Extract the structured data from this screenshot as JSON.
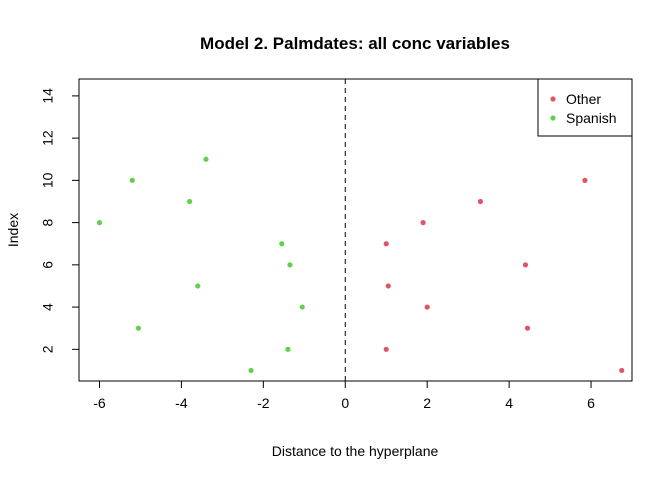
{
  "chart_data": {
    "type": "scatter",
    "title": "Model 2. Palmdates: all conc variables",
    "xlabel": "Distance to the hyperplane",
    "ylabel": "Index",
    "xlim": [
      -6.5,
      7.0
    ],
    "ylim": [
      0.5,
      14.8
    ],
    "xticks": [
      -6,
      -4,
      -2,
      0,
      2,
      4,
      6
    ],
    "yticks": [
      2,
      4,
      6,
      8,
      10,
      12,
      14
    ],
    "reference_line": {
      "x": 0,
      "style": "dashed"
    },
    "legend_position": "top-right",
    "series": [
      {
        "name": "Other",
        "color": "#DF536B",
        "points": [
          {
            "x": 6.75,
            "y": 1
          },
          {
            "x": 1.0,
            "y": 2
          },
          {
            "x": 4.45,
            "y": 3
          },
          {
            "x": 2.0,
            "y": 4
          },
          {
            "x": 1.05,
            "y": 5
          },
          {
            "x": 4.4,
            "y": 6
          },
          {
            "x": 1.0,
            "y": 7
          },
          {
            "x": 1.9,
            "y": 8
          },
          {
            "x": 3.3,
            "y": 9
          },
          {
            "x": 5.85,
            "y": 10
          }
        ]
      },
      {
        "name": "Spanish",
        "color": "#61D04F",
        "points": [
          {
            "x": -2.3,
            "y": 1
          },
          {
            "x": -1.4,
            "y": 2
          },
          {
            "x": -5.05,
            "y": 3
          },
          {
            "x": -1.05,
            "y": 4
          },
          {
            "x": -3.6,
            "y": 5
          },
          {
            "x": -1.35,
            "y": 6
          },
          {
            "x": -1.55,
            "y": 7
          },
          {
            "x": -6.0,
            "y": 8
          },
          {
            "x": -3.8,
            "y": 9
          },
          {
            "x": -5.2,
            "y": 10
          },
          {
            "x": -3.4,
            "y": 11
          }
        ]
      }
    ]
  }
}
